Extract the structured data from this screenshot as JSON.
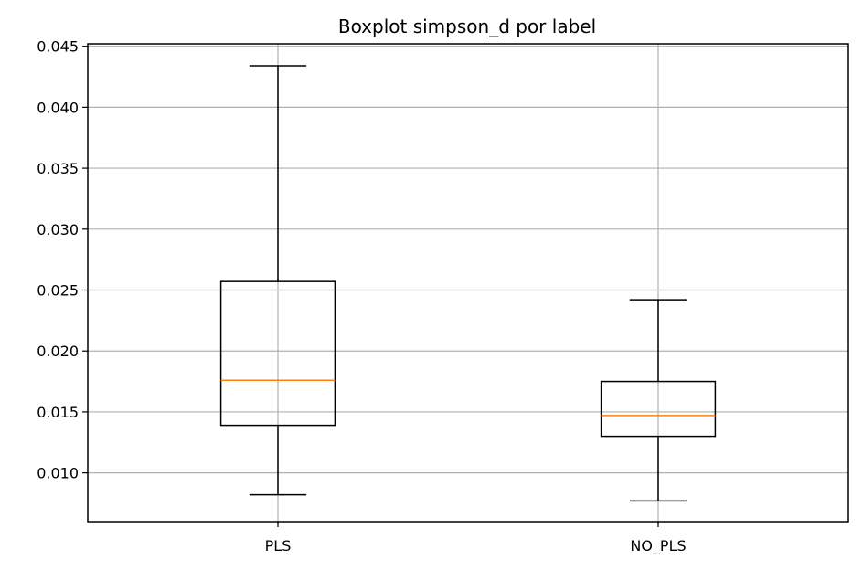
{
  "chart_data": {
    "type": "boxplot",
    "title": "Boxplot simpson_d por label",
    "xlabel": "",
    "ylabel": "",
    "categories": [
      "PLS",
      "NO_PLS"
    ],
    "boxes": [
      {
        "label": "PLS",
        "whisker_low": 0.0082,
        "q1": 0.0139,
        "median": 0.0176,
        "q3": 0.0257,
        "whisker_high": 0.0434
      },
      {
        "label": "NO_PLS",
        "whisker_low": 0.0077,
        "q1": 0.013,
        "median": 0.0147,
        "q3": 0.0175,
        "whisker_high": 0.0242
      }
    ],
    "ylim": [
      0.006,
      0.0452
    ],
    "yticks": [
      0.01,
      0.015,
      0.02,
      0.025,
      0.03,
      0.035,
      0.04,
      0.045
    ],
    "ytick_labels": [
      "0.010",
      "0.015",
      "0.020",
      "0.025",
      "0.030",
      "0.035",
      "0.040",
      "0.045"
    ],
    "grid": true,
    "colors": {
      "box": "#000000",
      "median": "#ff7f0e",
      "grid": "#b0b0b0"
    }
  }
}
